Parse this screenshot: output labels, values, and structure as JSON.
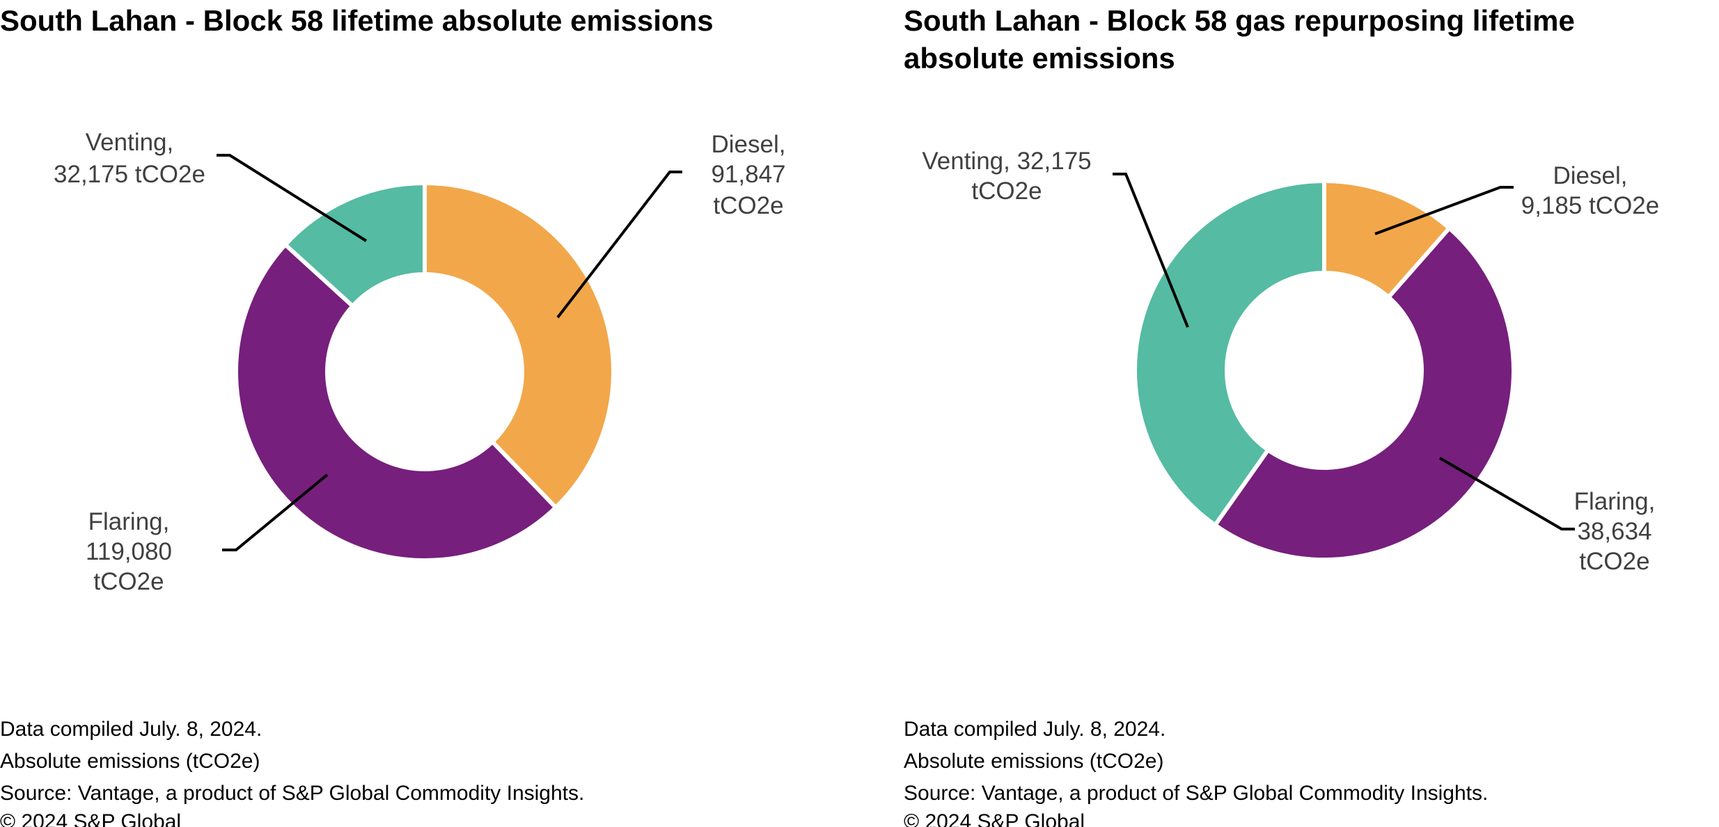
{
  "colors": {
    "Diesel": "#F2A74A",
    "Flaring": "#761F7C",
    "Venting": "#55BBA2"
  },
  "chart_data": [
    {
      "type": "pie",
      "variant": "donut",
      "title": "South Lahan - Block 58 lifetime absolute emissions",
      "unit": "tCO2e",
      "categories": [
        "Diesel",
        "Flaring",
        "Venting"
      ],
      "values": [
        91847,
        119080,
        32175
      ],
      "labels": [
        [
          "Diesel,",
          "91,847",
          "tCO2e"
        ],
        [
          "Flaring,",
          "119,080",
          "tCO2e"
        ],
        [
          "Venting,",
          "32,175 tCO2e"
        ]
      ],
      "notes": [
        "Data compiled July. 8, 2024.",
        "Absolute emissions (tCO2e)",
        "Source: Vantage, a product of S&P Global Commodity Insights.",
        "© 2024 S&P Global"
      ]
    },
    {
      "type": "pie",
      "variant": "donut",
      "title": "South Lahan - Block 58 gas repurposing lifetime absolute emissions",
      "title_lines": [
        "South Lahan - Block 58 gas repurposing lifetime",
        "absolute emissions"
      ],
      "unit": "tCO2e",
      "categories": [
        "Diesel",
        "Flaring",
        "Venting"
      ],
      "values": [
        9185,
        38634,
        32175
      ],
      "labels": [
        [
          "Diesel,",
          "9,185 tCO2e"
        ],
        [
          "Flaring,",
          "38,634",
          "tCO2e"
        ],
        [
          "Venting, 32,175",
          "tCO2e"
        ]
      ],
      "notes": [
        "Data compiled July. 8, 2024.",
        "Absolute emissions (tCO2e)",
        "Source: Vantage, a product of S&P Global Commodity Insights.",
        "© 2024 S&P Global"
      ]
    }
  ]
}
